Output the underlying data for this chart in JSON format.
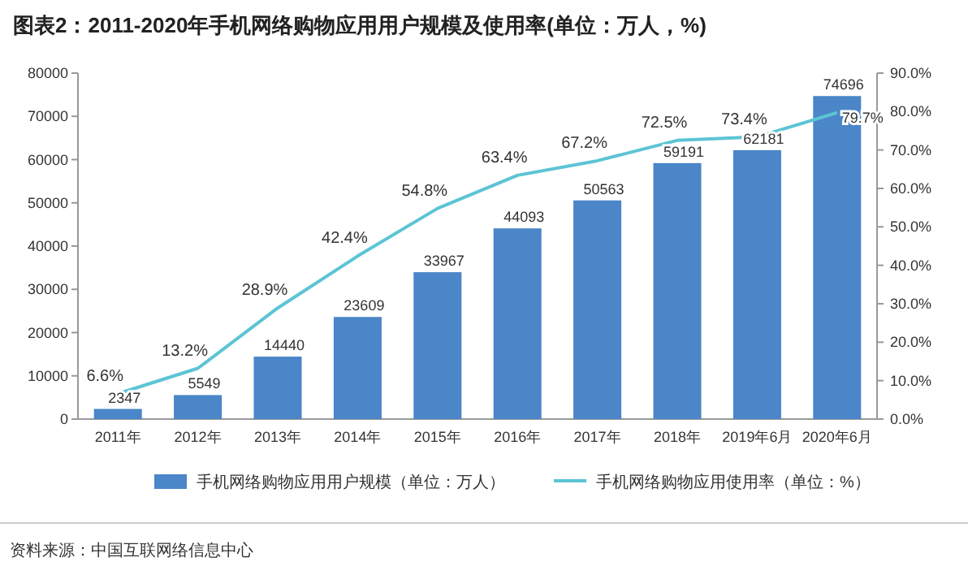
{
  "chart_data": {
    "type": "bar",
    "title": "图表2：2011-2020年手机网络购物应用用户规模及使用率(单位：万人，%)",
    "categories": [
      "2011年",
      "2012年",
      "2013年",
      "2014年",
      "2015年",
      "2016年",
      "2017年",
      "2018年",
      "2019年6月",
      "2020年6月"
    ],
    "series": [
      {
        "name": "手机网络购物应用用户规模（单位：万人）",
        "color": "#4a86c8",
        "values": [
          2347,
          5549,
          14440,
          23609,
          33967,
          44093,
          50563,
          59191,
          62181,
          74696
        ],
        "value_labels": [
          "2347",
          "5549",
          "14440",
          "23609",
          "33967",
          "44093",
          "50563",
          "59191",
          "62181",
          "74696"
        ]
      },
      {
        "name": "手机网络购物应用使用率（单位：%）",
        "type": "line",
        "axis": "y2",
        "color": "#5cc4d4",
        "values": [
          6.6,
          13.2,
          28.9,
          42.4,
          54.8,
          63.4,
          67.2,
          72.5,
          73.4,
          79.7
        ],
        "value_labels": [
          "6.6%",
          "13.2%",
          "28.9%",
          "42.4%",
          "54.8%",
          "63.4%",
          "67.2%",
          "72.5%",
          "73.4%",
          "79.7%"
        ]
      }
    ],
    "ylim": [
      0,
      80000
    ],
    "yticks": [
      0,
      10000,
      20000,
      30000,
      40000,
      50000,
      60000,
      70000,
      80000
    ],
    "y2lim": [
      0,
      90
    ],
    "y2ticks": [
      {
        "value": 0,
        "label": "0.0%"
      },
      {
        "value": 10,
        "label": "10.0%"
      },
      {
        "value": 20,
        "label": "20.0%"
      },
      {
        "value": 30,
        "label": "30.0%"
      },
      {
        "value": 40,
        "label": "40.0%"
      },
      {
        "value": 50,
        "label": "50.0%"
      },
      {
        "value": 60,
        "label": "60.0%"
      },
      {
        "value": 70,
        "label": "70.0%"
      },
      {
        "value": 80,
        "label": "80.0%"
      },
      {
        "value": 90,
        "label": "90.0%"
      }
    ],
    "legend": "bottom",
    "annotations": [
      "资料来源：中国互联网络信息中心"
    ]
  }
}
